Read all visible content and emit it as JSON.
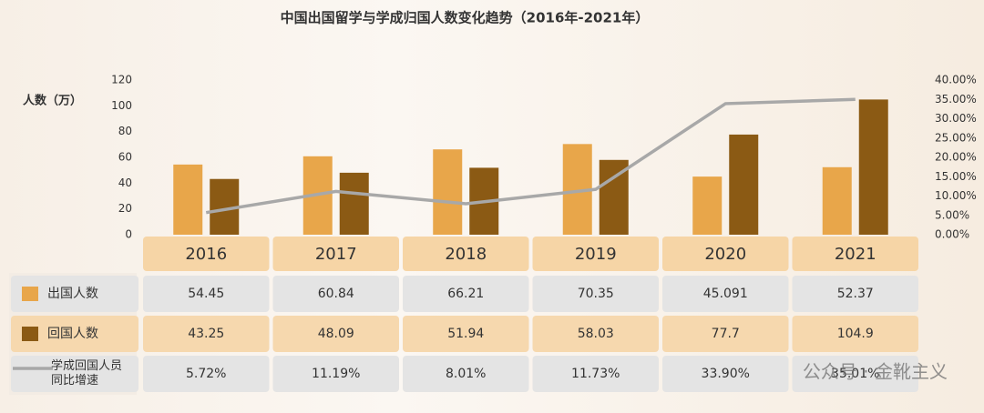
{
  "chart_data": {
    "type": "bar",
    "title": "中国出国留学与学成归国人数变化趋势（2016年-2021年）",
    "y_label": "人数（万）",
    "categories": [
      "2016",
      "2017",
      "2018",
      "2019",
      "2020",
      "2021"
    ],
    "ylim": [
      0,
      120
    ],
    "yticks": [
      0,
      20,
      40,
      60,
      80,
      100,
      120
    ],
    "y2lim": [
      0,
      40
    ],
    "y2ticks": [
      {
        "value": 0,
        "label": "0.00%"
      },
      {
        "value": 5,
        "label": "5.00%"
      },
      {
        "value": 10,
        "label": "10.00%"
      },
      {
        "value": 15,
        "label": "15.00%"
      },
      {
        "value": 20,
        "label": "20.00%"
      },
      {
        "value": 25,
        "label": "25.00%"
      },
      {
        "value": 30,
        "label": "30.00%"
      },
      {
        "value": 35,
        "label": "35.00%"
      },
      {
        "value": 40,
        "label": "40.00%"
      }
    ],
    "series": [
      {
        "name": "出国人数",
        "type": "bar",
        "color": "#e8a64a",
        "values": [
          54.45,
          60.84,
          66.21,
          70.35,
          45.091,
          52.37
        ]
      },
      {
        "name": "回国人数",
        "type": "bar",
        "color": "#8b5a14",
        "values": [
          43.25,
          48.09,
          51.94,
          58.03,
          77.7,
          104.9
        ]
      },
      {
        "name": "学成回国人员同比增速",
        "type": "line",
        "axis": "y2",
        "color": "#a8a8a8",
        "values": [
          5.72,
          11.19,
          8.01,
          11.73,
          33.9,
          35.01
        ],
        "value_labels": [
          "5.72%",
          "11.19%",
          "8.01%",
          "11.73%",
          "33.90%",
          "35.01%"
        ]
      }
    ]
  },
  "watermark": "公众号 · 金靴主义"
}
